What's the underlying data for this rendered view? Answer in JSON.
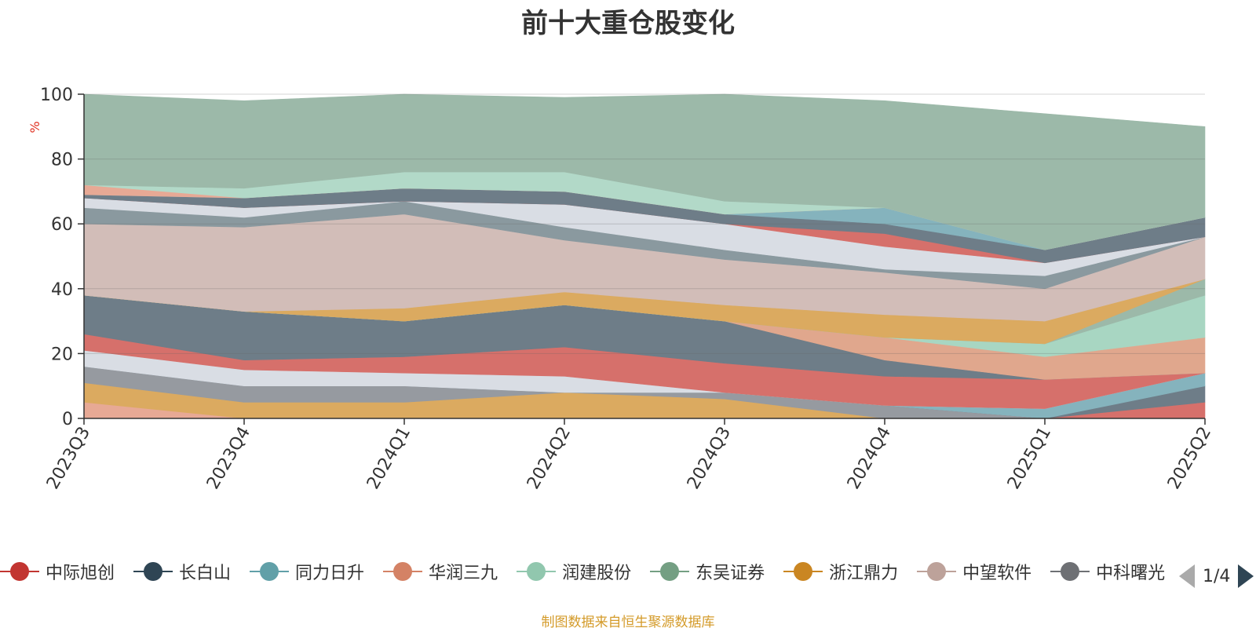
{
  "chart_data": {
    "type": "area",
    "title": "前十大重仓股变化",
    "ylabel": "%",
    "ylim": [
      0,
      100
    ],
    "yticks": [
      0,
      20,
      40,
      60,
      80,
      100
    ],
    "grid": true,
    "legend_placement": "bottom",
    "categories": [
      "2023Q3",
      "2023Q4",
      "2024Q1",
      "2024Q2",
      "2024Q3",
      "2024Q4",
      "2025Q1",
      "2025Q2"
    ],
    "series": [
      {
        "name": "",
        "color": "#e7a995",
        "values": [
          5,
          0,
          0,
          0,
          0,
          0,
          0,
          0
        ]
      },
      {
        "name": "",
        "color": "#dbaa60",
        "values": [
          6,
          5,
          5,
          8,
          6,
          0,
          0,
          0
        ]
      },
      {
        "name": "",
        "color": "#969aa0",
        "values": [
          5,
          5,
          5,
          0,
          2,
          4,
          0,
          0
        ]
      },
      {
        "name": "中际旭创",
        "color": "#d6706b",
        "values": [
          0,
          0,
          0,
          0,
          0,
          0,
          0,
          5
        ]
      },
      {
        "name": "长白山",
        "color": "#6e7d88",
        "values": [
          0,
          0,
          0,
          0,
          0,
          0,
          0,
          5
        ]
      },
      {
        "name": "同力日升",
        "color": "#85b3bd",
        "values": [
          0,
          0,
          0,
          0,
          0,
          0,
          3,
          4
        ]
      },
      {
        "name": "",
        "color": "#d9dde4",
        "values": [
          5,
          5,
          4,
          5,
          0,
          0,
          0,
          0
        ]
      },
      {
        "name": "",
        "color": "#d6706b",
        "values": [
          5,
          3,
          5,
          9,
          9,
          9,
          9,
          0
        ]
      },
      {
        "name": "",
        "color": "#6e7d88",
        "values": [
          12,
          15,
          11,
          13,
          13,
          5,
          0,
          0
        ]
      },
      {
        "name": "华润三九",
        "color": "#e0a78d",
        "values": [
          0,
          0,
          0,
          0,
          0,
          7,
          7,
          11
        ]
      },
      {
        "name": "润建股份",
        "color": "#a8d6c2",
        "values": [
          0,
          0,
          0,
          0,
          0,
          0,
          4,
          13
        ]
      },
      {
        "name": "东吴证券",
        "color": "#9cb9a9",
        "values": [
          0,
          0,
          0,
          0,
          0,
          0,
          0,
          5
        ]
      },
      {
        "name": "浙江鼎力",
        "color": "#dbaa60",
        "values": [
          0,
          0,
          4,
          4,
          5,
          7,
          7,
          0
        ]
      },
      {
        "name": "中望软件",
        "color": "#d2bdb8",
        "values": [
          22,
          26,
          29,
          16,
          14,
          13,
          10,
          13
        ]
      },
      {
        "name": "",
        "color": "#8a999f",
        "values": [
          5,
          3,
          4,
          4,
          3,
          1,
          4,
          0
        ]
      },
      {
        "name": "",
        "color": "#d9dde4",
        "values": [
          3,
          3,
          0,
          7,
          8,
          7,
          4,
          0
        ]
      },
      {
        "name": "",
        "color": "#d6706b",
        "values": [
          0,
          0,
          0,
          0,
          0,
          4,
          0,
          0
        ]
      },
      {
        "name": "",
        "color": "#6e7d88",
        "values": [
          1,
          3,
          4,
          4,
          3,
          3,
          4,
          6
        ]
      },
      {
        "name": "",
        "color": "#85b3bd",
        "values": [
          0,
          0,
          0,
          0,
          0,
          5,
          0,
          0
        ]
      },
      {
        "name": "",
        "color": "#e7a995",
        "values": [
          3,
          0,
          0,
          0,
          0,
          0,
          0,
          0
        ]
      },
      {
        "name": "",
        "color": "#b2d9c8",
        "values": [
          0,
          3,
          5,
          6,
          4,
          0,
          0,
          0
        ]
      },
      {
        "name": "",
        "color": "#9cb9a9",
        "values": [
          28,
          27,
          24,
          23,
          33,
          33,
          42,
          28
        ]
      }
    ]
  },
  "legend": {
    "items": [
      {
        "label": "中际旭创",
        "color": "#c23531"
      },
      {
        "label": "长白山",
        "color": "#2f4554"
      },
      {
        "label": "同力日升",
        "color": "#61a0a8"
      },
      {
        "label": "华润三九",
        "color": "#d48265"
      },
      {
        "label": "润建股份",
        "color": "#91c7ae"
      },
      {
        "label": "东吴证券",
        "color": "#749f83"
      },
      {
        "label": "浙江鼎力",
        "color": "#ca8622"
      },
      {
        "label": "中望软件",
        "color": "#bda29a"
      },
      {
        "label": "中科曙光",
        "color": "#6e7074"
      }
    ],
    "page_label": "1/4"
  },
  "source_note": "制图数据来自恒生聚源数据库"
}
